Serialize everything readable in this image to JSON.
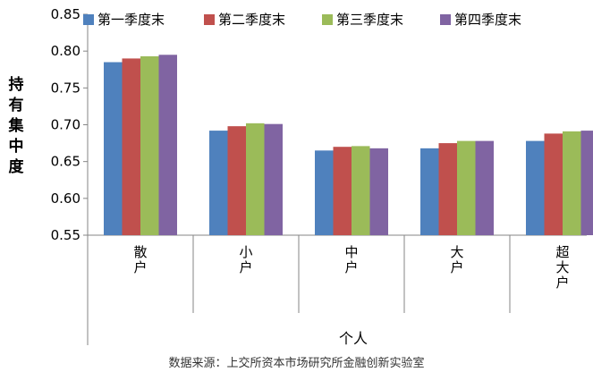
{
  "chart_data": {
    "type": "bar",
    "ylabel": "持有集中度",
    "xlabel": "个人",
    "source_note": "数据来源：上交所资本市场研究所金融创新实验室",
    "ylim": [
      0.55,
      0.85
    ],
    "yticks": [
      "0.55",
      "0.60",
      "0.65",
      "0.70",
      "0.75",
      "0.80",
      "0.85"
    ],
    "ytick_values": [
      0.55,
      0.6,
      0.65,
      0.7,
      0.75,
      0.8,
      0.85
    ],
    "categories": [
      "散户",
      "小户",
      "中户",
      "大户",
      "超大户"
    ],
    "legend_position": "top",
    "grid": false,
    "series": [
      {
        "name": "第一季度末",
        "color": "#4F81BD",
        "values": [
          0.785,
          0.692,
          0.665,
          0.668,
          0.678
        ]
      },
      {
        "name": "第二季度末",
        "color": "#C0504D",
        "values": [
          0.79,
          0.698,
          0.67,
          0.675,
          0.688
        ]
      },
      {
        "name": "第三季度末",
        "color": "#9BBB59",
        "values": [
          0.793,
          0.702,
          0.671,
          0.678,
          0.691
        ]
      },
      {
        "name": "第四季度末",
        "color": "#8064A2",
        "values": [
          0.795,
          0.701,
          0.668,
          0.678,
          0.692
        ]
      }
    ]
  }
}
